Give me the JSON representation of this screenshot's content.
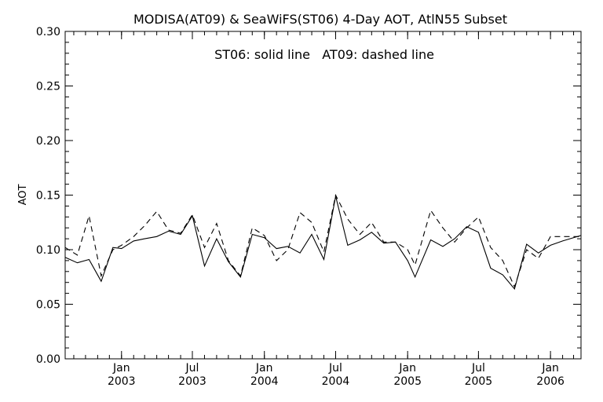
{
  "chart_data": {
    "type": "line",
    "title": "MODISA(AT09) & SeaWiFS(ST06) 4-Day AOT, AtlN55 Subset",
    "annotation": "ST06: solid line   AT09: dashed line",
    "ylabel": "AOT",
    "xlabel": "",
    "ylim": [
      0.0,
      0.3
    ],
    "xlim": [
      "2002-08-10",
      "2006-03-20"
    ],
    "y_ticks": [
      "0.00",
      "0.05",
      "0.10",
      "0.15",
      "0.20",
      "0.25",
      "0.30"
    ],
    "x_ticks": [
      {
        "month": "Jan",
        "year": "2003",
        "date": "2003-01-01"
      },
      {
        "month": "Jul",
        "year": "2003",
        "date": "2003-07-01"
      },
      {
        "month": "Jan",
        "year": "2004",
        "date": "2004-01-01"
      },
      {
        "month": "Jul",
        "year": "2004",
        "date": "2004-07-01"
      },
      {
        "month": "Jan",
        "year": "2005",
        "date": "2005-01-01"
      },
      {
        "month": "Jul",
        "year": "2005",
        "date": "2005-07-01"
      },
      {
        "month": "Jan",
        "year": "2006",
        "date": "2006-01-01"
      }
    ],
    "grid": false,
    "series": [
      {
        "name": "ST06",
        "style": "solid",
        "color": "#000000",
        "points": [
          [
            "2002-08-10",
            0.093
          ],
          [
            "2002-09-10",
            0.088
          ],
          [
            "2002-10-10",
            0.091
          ],
          [
            "2002-11-10",
            0.071
          ],
          [
            "2002-12-10",
            0.102
          ],
          [
            "2003-01-01",
            0.101
          ],
          [
            "2003-02-01",
            0.108
          ],
          [
            "2003-03-01",
            0.11
          ],
          [
            "2003-04-01",
            0.112
          ],
          [
            "2003-05-01",
            0.117
          ],
          [
            "2003-06-01",
            0.114
          ],
          [
            "2003-07-01",
            0.131
          ],
          [
            "2003-08-01",
            0.085
          ],
          [
            "2003-09-01",
            0.11
          ],
          [
            "2003-10-01",
            0.089
          ],
          [
            "2003-11-01",
            0.075
          ],
          [
            "2003-12-01",
            0.114
          ],
          [
            "2004-01-01",
            0.111
          ],
          [
            "2004-02-01",
            0.101
          ],
          [
            "2004-03-01",
            0.103
          ],
          [
            "2004-04-01",
            0.097
          ],
          [
            "2004-05-01",
            0.114
          ],
          [
            "2004-06-01",
            0.091
          ],
          [
            "2004-07-01",
            0.149
          ],
          [
            "2004-08-01",
            0.104
          ],
          [
            "2004-09-01",
            0.109
          ],
          [
            "2004-10-01",
            0.116
          ],
          [
            "2004-11-01",
            0.106
          ],
          [
            "2004-12-01",
            0.107
          ],
          [
            "2005-01-01",
            0.09
          ],
          [
            "2005-01-20",
            0.075
          ],
          [
            "2005-03-01",
            0.109
          ],
          [
            "2005-04-01",
            0.103
          ],
          [
            "2005-05-01",
            0.11
          ],
          [
            "2005-06-01",
            0.121
          ],
          [
            "2005-07-01",
            0.116
          ],
          [
            "2005-08-01",
            0.083
          ],
          [
            "2005-09-01",
            0.077
          ],
          [
            "2005-10-01",
            0.064
          ],
          [
            "2005-11-01",
            0.105
          ],
          [
            "2005-12-01",
            0.097
          ],
          [
            "2006-01-01",
            0.104
          ],
          [
            "2006-02-01",
            0.108
          ],
          [
            "2006-03-20",
            0.113
          ]
        ]
      },
      {
        "name": "AT09",
        "style": "dashed",
        "color": "#000000",
        "points": [
          [
            "2002-08-10",
            0.102
          ],
          [
            "2002-09-10",
            0.095
          ],
          [
            "2002-10-10",
            0.131
          ],
          [
            "2002-11-10",
            0.076
          ],
          [
            "2002-12-10",
            0.1
          ],
          [
            "2003-01-01",
            0.104
          ],
          [
            "2003-02-01",
            0.112
          ],
          [
            "2003-03-01",
            0.122
          ],
          [
            "2003-04-01",
            0.135
          ],
          [
            "2003-05-01",
            0.118
          ],
          [
            "2003-06-01",
            0.115
          ],
          [
            "2003-07-01",
            0.132
          ],
          [
            "2003-08-01",
            0.102
          ],
          [
            "2003-09-01",
            0.124
          ],
          [
            "2003-10-01",
            0.09
          ],
          [
            "2003-11-01",
            0.076
          ],
          [
            "2003-12-01",
            0.12
          ],
          [
            "2004-01-01",
            0.113
          ],
          [
            "2004-02-01",
            0.09
          ],
          [
            "2004-03-01",
            0.1
          ],
          [
            "2004-04-01",
            0.134
          ],
          [
            "2004-05-01",
            0.125
          ],
          [
            "2004-06-01",
            0.098
          ],
          [
            "2004-07-01",
            0.15
          ],
          [
            "2004-08-01",
            0.128
          ],
          [
            "2004-09-01",
            0.114
          ],
          [
            "2004-10-01",
            0.125
          ],
          [
            "2004-11-01",
            0.107
          ],
          [
            "2004-12-01",
            0.107
          ],
          [
            "2005-01-01",
            0.1
          ],
          [
            "2005-01-20",
            0.086
          ],
          [
            "2005-03-01",
            0.136
          ],
          [
            "2005-04-01",
            0.12
          ],
          [
            "2005-05-01",
            0.107
          ],
          [
            "2005-06-01",
            0.12
          ],
          [
            "2005-07-01",
            0.13
          ],
          [
            "2005-08-01",
            0.102
          ],
          [
            "2005-09-01",
            0.09
          ],
          [
            "2005-10-01",
            0.066
          ],
          [
            "2005-11-01",
            0.1
          ],
          [
            "2005-12-01",
            0.092
          ],
          [
            "2006-01-01",
            0.112
          ],
          [
            "2006-02-01",
            0.112
          ],
          [
            "2006-03-20",
            0.112
          ]
        ]
      }
    ]
  }
}
